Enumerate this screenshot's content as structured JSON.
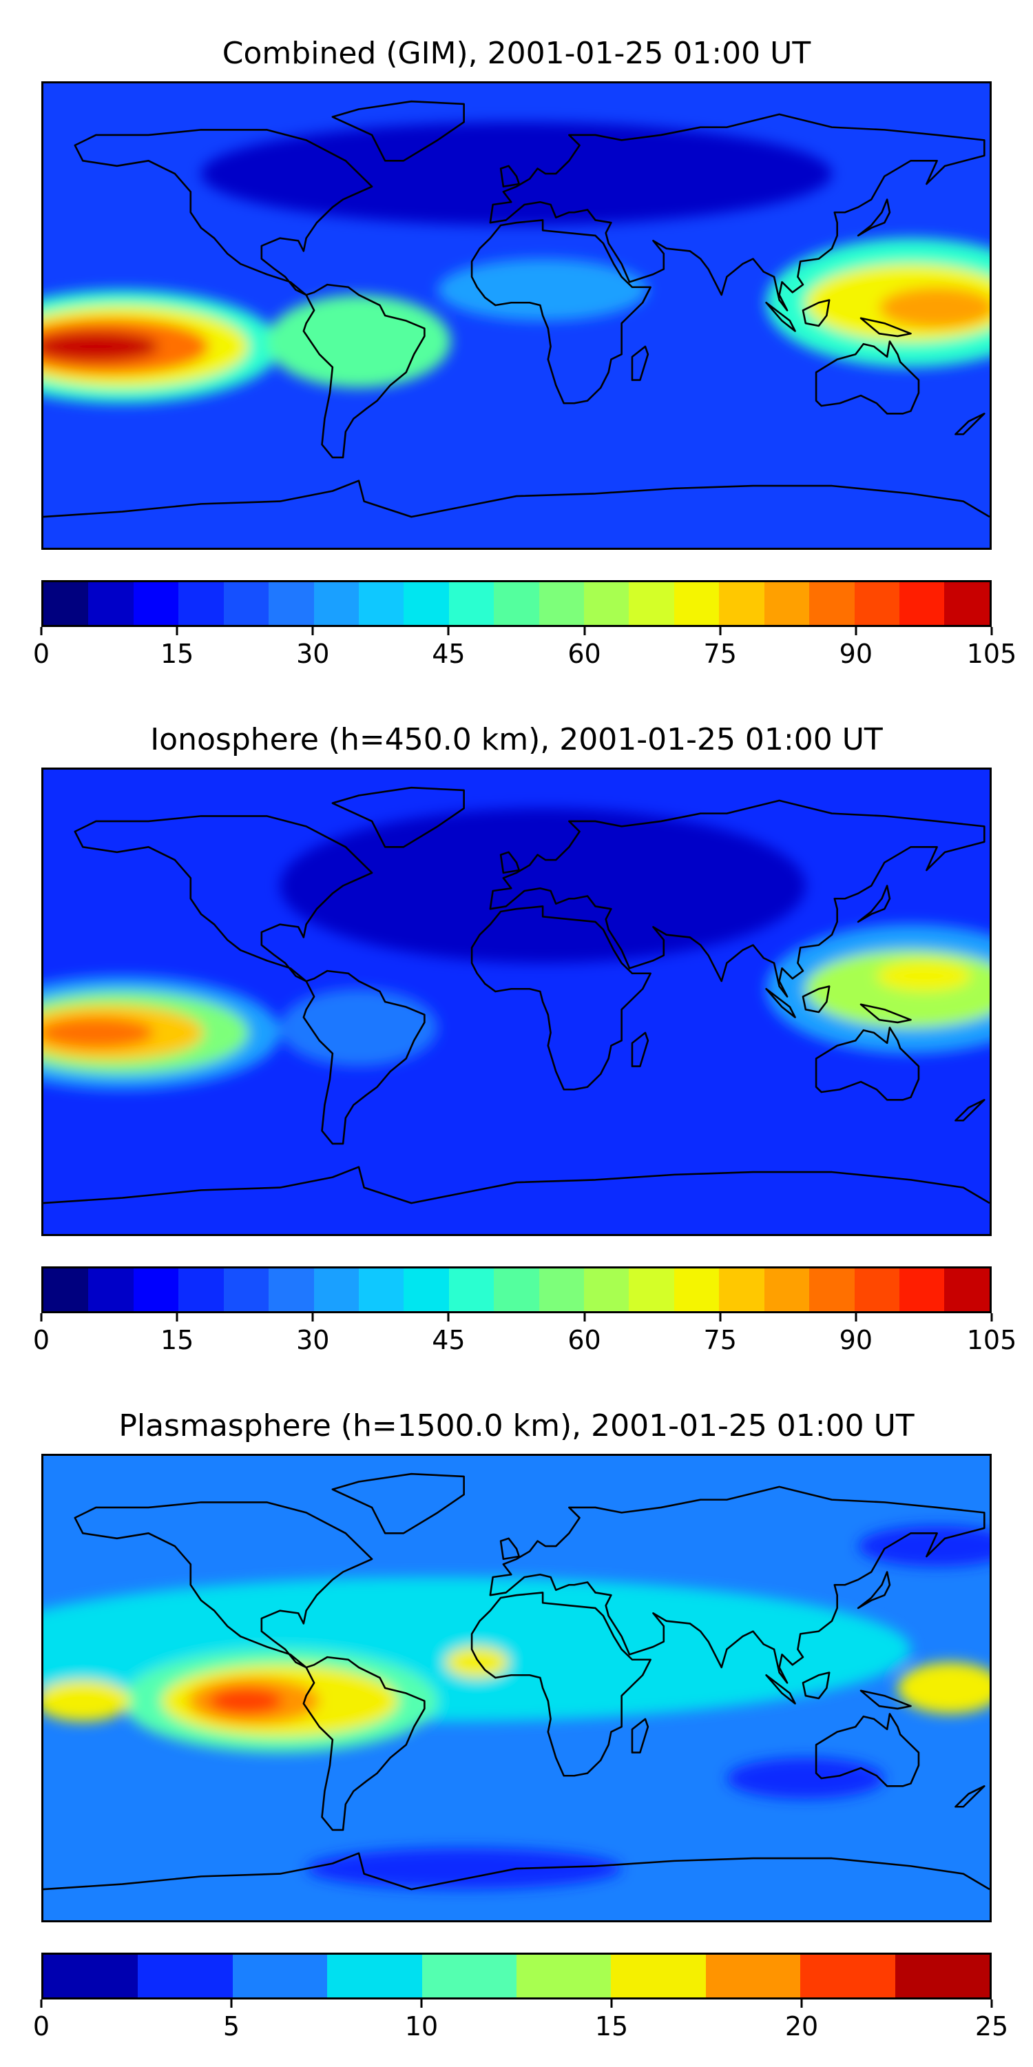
{
  "panels": [
    {
      "title": "Combined (GIM), 2001-01-25 01:00 UT",
      "colorbar": {
        "min": 0,
        "max": 105,
        "levels": 21,
        "tick_labels": [
          "0",
          "15",
          "30",
          "45",
          "60",
          "75",
          "90",
          "105"
        ],
        "colors": [
          "#00007f",
          "#0000c8",
          "#0000ff",
          "#0b2bff",
          "#1550ff",
          "#1f78ff",
          "#1aa0ff",
          "#0fc8ff",
          "#00e6f0",
          "#2affd0",
          "#54ff9e",
          "#7dff7a",
          "#a8ff50",
          "#d4ff28",
          "#f5f500",
          "#ffc800",
          "#ffa000",
          "#ff7000",
          "#ff4800",
          "#ff1e00",
          "#c80000",
          "#8c0000"
        ]
      },
      "field": {
        "background": "#1040ff",
        "blobs": [
          {
            "lon": -150,
            "lat": -12,
            "rx": 60,
            "ry": 22,
            "color": "#2affd0"
          },
          {
            "lon": -150,
            "lat": -12,
            "rx": 48,
            "ry": 16,
            "color": "#f5f500"
          },
          {
            "lon": -155,
            "lat": -12,
            "rx": 38,
            "ry": 11,
            "color": "#ff7000"
          },
          {
            "lon": -160,
            "lat": -12,
            "rx": 24,
            "ry": 6,
            "color": "#c80000"
          },
          {
            "lon": 150,
            "lat": 5,
            "rx": 55,
            "ry": 25,
            "color": "#2affd0"
          },
          {
            "lon": 150,
            "lat": 5,
            "rx": 40,
            "ry": 15,
            "color": "#f5f500"
          },
          {
            "lon": 160,
            "lat": 3,
            "rx": 22,
            "ry": 8,
            "color": "#ffa000"
          },
          {
            "lon": -60,
            "lat": -10,
            "rx": 35,
            "ry": 18,
            "color": "#54ff9e"
          },
          {
            "lon": 10,
            "lat": 10,
            "rx": 40,
            "ry": 12,
            "color": "#1aa0ff"
          },
          {
            "lon": 0,
            "lat": 55,
            "rx": 120,
            "ry": 20,
            "color": "#0000c8"
          }
        ]
      }
    },
    {
      "title": "Ionosphere  (h=450.0 km), 2001-01-25 01:00 UT",
      "colorbar": {
        "min": 0,
        "max": 105,
        "levels": 21,
        "tick_labels": [
          "0",
          "15",
          "30",
          "45",
          "60",
          "75",
          "90",
          "105"
        ],
        "colors": [
          "#00007f",
          "#0000c8",
          "#0000ff",
          "#0b2bff",
          "#1550ff",
          "#1f78ff",
          "#1aa0ff",
          "#0fc8ff",
          "#00e6f0",
          "#2affd0",
          "#54ff9e",
          "#7dff7a",
          "#a8ff50",
          "#d4ff28",
          "#f5f500",
          "#ffc800",
          "#ffa000",
          "#ff7000",
          "#ff4800",
          "#ff1e00",
          "#c80000",
          "#8c0000"
        ]
      },
      "field": {
        "background": "#0b2bff",
        "blobs": [
          {
            "lon": -150,
            "lat": -12,
            "rx": 60,
            "ry": 22,
            "color": "#1aa0ff"
          },
          {
            "lon": -150,
            "lat": -12,
            "rx": 48,
            "ry": 16,
            "color": "#7dff7a"
          },
          {
            "lon": -155,
            "lat": -12,
            "rx": 36,
            "ry": 11,
            "color": "#ffc800"
          },
          {
            "lon": -160,
            "lat": -12,
            "rx": 22,
            "ry": 6,
            "color": "#ff7000"
          },
          {
            "lon": 150,
            "lat": 5,
            "rx": 55,
            "ry": 25,
            "color": "#1aa0ff"
          },
          {
            "lon": 150,
            "lat": 5,
            "rx": 40,
            "ry": 15,
            "color": "#a8ff50"
          },
          {
            "lon": 155,
            "lat": 10,
            "rx": 18,
            "ry": 6,
            "color": "#f5f500"
          },
          {
            "lon": 10,
            "lat": 45,
            "rx": 100,
            "ry": 30,
            "color": "#0000c8"
          },
          {
            "lon": -60,
            "lat": -10,
            "rx": 30,
            "ry": 15,
            "color": "#1f78ff"
          }
        ]
      }
    },
    {
      "title": "Plasmasphere (h=1500.0 km), 2001-01-25 01:00 UT",
      "colorbar": {
        "min": 0,
        "max": 25,
        "levels": 10,
        "tick_labels": [
          "0",
          "5",
          "10",
          "15",
          "20",
          "25"
        ],
        "colors": [
          "#0000b0",
          "#0a2aff",
          "#1a80ff",
          "#00e0f0",
          "#54ffb0",
          "#a8ff50",
          "#f5f000",
          "#ff9400",
          "#ff3c00",
          "#b40000"
        ]
      },
      "field": {
        "background": "#1a80ff",
        "blobs": [
          {
            "lon": -30,
            "lat": 15,
            "rx": 180,
            "ry": 28,
            "color": "#00e0f0"
          },
          {
            "lon": -90,
            "lat": -5,
            "rx": 60,
            "ry": 20,
            "color": "#54ffb0"
          },
          {
            "lon": -90,
            "lat": -5,
            "rx": 45,
            "ry": 14,
            "color": "#f5f000"
          },
          {
            "lon": -100,
            "lat": -5,
            "rx": 25,
            "ry": 9,
            "color": "#ff9400"
          },
          {
            "lon": -103,
            "lat": -5,
            "rx": 14,
            "ry": 5,
            "color": "#ff3c00"
          },
          {
            "lon": -165,
            "lat": -5,
            "rx": 18,
            "ry": 8,
            "color": "#f5f000"
          },
          {
            "lon": 165,
            "lat": 0,
            "rx": 20,
            "ry": 10,
            "color": "#f5f000"
          },
          {
            "lon": -15,
            "lat": 10,
            "rx": 12,
            "ry": 6,
            "color": "#f5f000"
          },
          {
            "lon": 110,
            "lat": -35,
            "rx": 30,
            "ry": 8,
            "color": "#0a2aff"
          },
          {
            "lon": 160,
            "lat": 55,
            "rx": 30,
            "ry": 8,
            "color": "#0a2aff"
          },
          {
            "lon": -20,
            "lat": -70,
            "rx": 60,
            "ry": 8,
            "color": "#0a2aff"
          }
        ]
      }
    }
  ]
}
